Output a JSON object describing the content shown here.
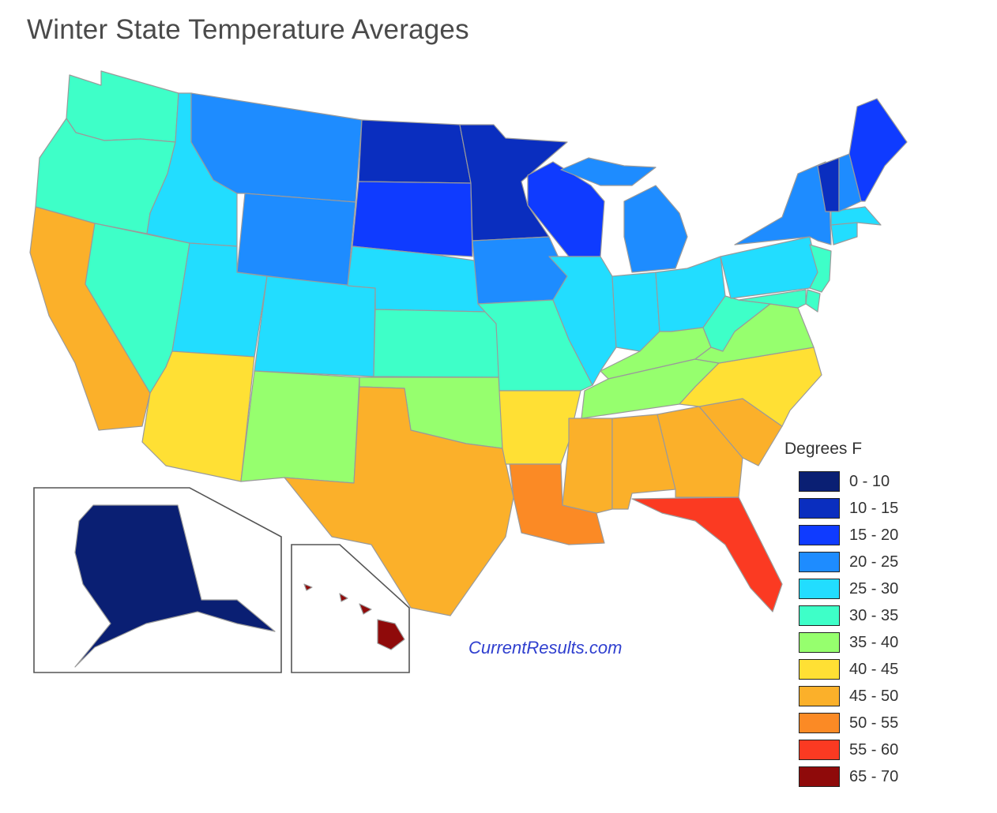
{
  "title": "Winter State Temperature Averages",
  "credit": "CurrentResults.com",
  "legend": {
    "title": "Degrees F",
    "items": [
      {
        "label": "0 - 10",
        "color": "#0a1f73"
      },
      {
        "label": "10 - 15",
        "color": "#0a2ebf"
      },
      {
        "label": "15 - 20",
        "color": "#0f3bff"
      },
      {
        "label": "20 - 25",
        "color": "#1e8cff"
      },
      {
        "label": "25 - 30",
        "color": "#22ddff"
      },
      {
        "label": "30 - 35",
        "color": "#3effc8"
      },
      {
        "label": "35 - 40",
        "color": "#96ff6e"
      },
      {
        "label": "40 - 45",
        "color": "#ffe034"
      },
      {
        "label": "45 - 50",
        "color": "#fbb02a"
      },
      {
        "label": "50 - 55",
        "color": "#fb8a25"
      },
      {
        "label": "55 - 60",
        "color": "#fb3a22"
      },
      {
        "label": "65 - 70",
        "color": "#8f0a0a"
      }
    ]
  },
  "states": [
    {
      "name": "Washington",
      "range": "30 - 35"
    },
    {
      "name": "Oregon",
      "range": "30 - 35"
    },
    {
      "name": "California",
      "range": "45 - 50"
    },
    {
      "name": "Nevada",
      "range": "30 - 35"
    },
    {
      "name": "Idaho",
      "range": "25 - 30"
    },
    {
      "name": "Montana",
      "range": "20 - 25"
    },
    {
      "name": "Wyoming",
      "range": "20 - 25"
    },
    {
      "name": "Utah",
      "range": "25 - 30"
    },
    {
      "name": "Arizona",
      "range": "40 - 45"
    },
    {
      "name": "Colorado",
      "range": "25 - 30"
    },
    {
      "name": "New Mexico",
      "range": "35 - 40"
    },
    {
      "name": "North Dakota",
      "range": "10 - 15"
    },
    {
      "name": "South Dakota",
      "range": "15 - 20"
    },
    {
      "name": "Nebraska",
      "range": "25 - 30"
    },
    {
      "name": "Kansas",
      "range": "30 - 35"
    },
    {
      "name": "Oklahoma",
      "range": "35 - 40"
    },
    {
      "name": "Texas",
      "range": "45 - 50"
    },
    {
      "name": "Minnesota",
      "range": "10 - 15"
    },
    {
      "name": "Iowa",
      "range": "20 - 25"
    },
    {
      "name": "Missouri",
      "range": "30 - 35"
    },
    {
      "name": "Arkansas",
      "range": "40 - 45"
    },
    {
      "name": "Louisiana",
      "range": "50 - 55"
    },
    {
      "name": "Wisconsin",
      "range": "15 - 20"
    },
    {
      "name": "Illinois",
      "range": "25 - 30"
    },
    {
      "name": "Michigan",
      "range": "20 - 25"
    },
    {
      "name": "Indiana",
      "range": "25 - 30"
    },
    {
      "name": "Ohio",
      "range": "25 - 30"
    },
    {
      "name": "Kentucky",
      "range": "35 - 40"
    },
    {
      "name": "Tennessee",
      "range": "35 - 40"
    },
    {
      "name": "Mississippi",
      "range": "45 - 50"
    },
    {
      "name": "Alabama",
      "range": "45 - 50"
    },
    {
      "name": "Georgia",
      "range": "45 - 50"
    },
    {
      "name": "Florida",
      "range": "55 - 60"
    },
    {
      "name": "South Carolina",
      "range": "45 - 50"
    },
    {
      "name": "North Carolina",
      "range": "40 - 45"
    },
    {
      "name": "Virginia",
      "range": "35 - 40"
    },
    {
      "name": "West Virginia",
      "range": "30 - 35"
    },
    {
      "name": "Pennsylvania",
      "range": "25 - 30"
    },
    {
      "name": "New York",
      "range": "20 - 25"
    },
    {
      "name": "New Jersey",
      "range": "30 - 35"
    },
    {
      "name": "Delaware",
      "range": "30 - 35"
    },
    {
      "name": "Maryland",
      "range": "30 - 35"
    },
    {
      "name": "Connecticut",
      "range": "25 - 30"
    },
    {
      "name": "Massachusetts",
      "range": "25 - 30"
    },
    {
      "name": "Vermont",
      "range": "10 - 15"
    },
    {
      "name": "New Hampshire",
      "range": "20 - 25"
    },
    {
      "name": "Maine",
      "range": "15 - 20"
    },
    {
      "name": "Alaska",
      "range": "0 - 10"
    },
    {
      "name": "Hawaii",
      "range": "65 - 70"
    }
  ]
}
